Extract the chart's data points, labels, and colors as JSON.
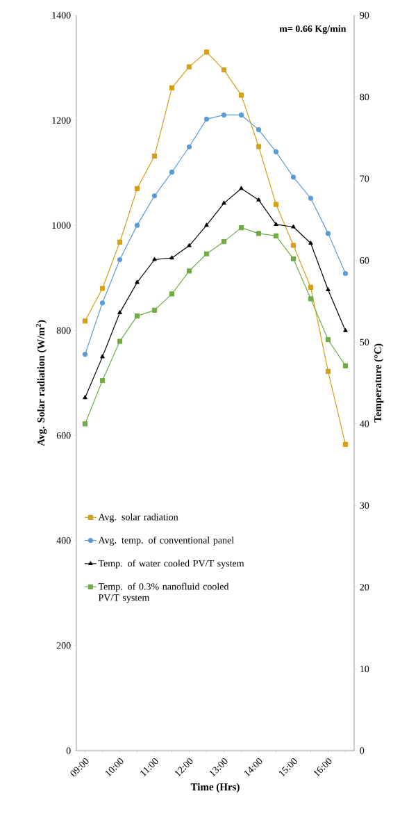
{
  "chart_data": {
    "type": "line",
    "annotations": [
      "m= 0.66 Kg/min"
    ],
    "xlabel": "Time (Hrs)",
    "ylabel": "Avg. Solar radiation (W/m$^{2}$)",
    "y2label": "Temperature (°C)",
    "categories": [
      "09:00",
      null,
      "10:00",
      null,
      "11:00",
      null,
      "12:00",
      null,
      "13:00",
      null,
      "14:00",
      null,
      "15:00",
      null,
      "16:00",
      null
    ],
    "ylim": [
      0,
      1400
    ],
    "yticks": [
      0,
      200,
      400,
      600,
      800,
      1000,
      1200,
      1400
    ],
    "y2lim": [
      0,
      90
    ],
    "y2ticks": [
      0,
      10,
      20,
      30,
      40,
      50,
      60,
      70,
      80,
      90
    ],
    "legend": "left",
    "grid": false,
    "line_style": "solid",
    "series": [
      {
        "name": "Avg. solar radiation",
        "color": "#d4a017",
        "marker": "square",
        "values": [
          818,
          880,
          968,
          1070,
          1132,
          1262,
          1302,
          1330,
          1296,
          1248,
          1150,
          1040,
          962,
          882,
          722,
          583
        ]
      },
      {
        "name": "Avg. temp. of conventional panel",
        "color": "#5b9bd5",
        "marker": "circle",
        "axis": "y2",
        "values": [
          48.5,
          54.8,
          60.1,
          64.3,
          67.9,
          70.8,
          73.9,
          77.3,
          77.8,
          77.8,
          76.0,
          73.3,
          70.2,
          67.6,
          63.3,
          58.4
        ]
      },
      {
        "name": "Temp. of water cooled PV/T system",
        "color": "#000000",
        "marker": "triangle",
        "axis": "y2",
        "values": [
          43.2,
          48.2,
          53.6,
          57.3,
          60.1,
          60.3,
          61.8,
          64.3,
          67.0,
          68.8,
          67.4,
          64.4,
          64.1,
          62.1,
          56.4,
          51.4
        ]
      },
      {
        "name": "Temp. of 0.3% nanofluid cooled PV/T system",
        "color": "#70ad47",
        "marker": "square",
        "axis": "y2",
        "values": [
          40.0,
          45.3,
          50.1,
          53.2,
          53.9,
          55.9,
          58.7,
          60.8,
          62.3,
          64.0,
          63.3,
          63.0,
          60.2,
          55.3,
          50.3,
          47.1
        ]
      }
    ]
  }
}
